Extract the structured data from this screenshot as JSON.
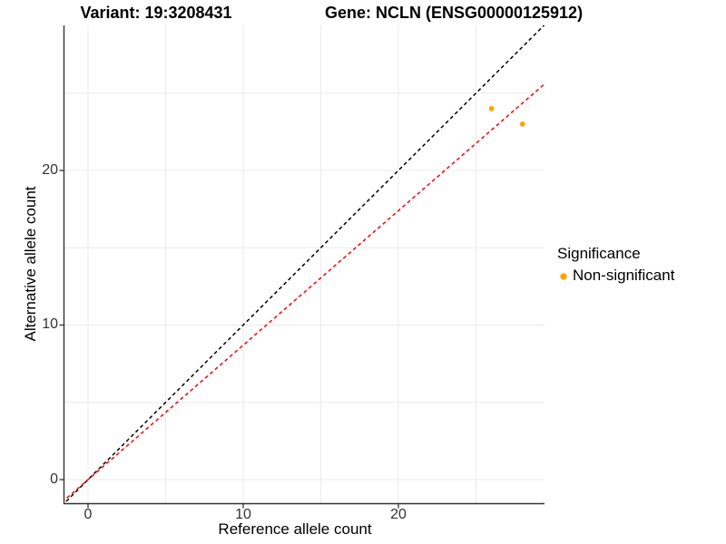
{
  "titles": {
    "left": "Variant: 19:3208431",
    "right": "Gene: NCLN (ENSG00000125912)"
  },
  "axes": {
    "x": {
      "label": "Reference allele count",
      "ticks": [
        "0",
        "10",
        "20"
      ]
    },
    "y": {
      "label": "Alternative allele count",
      "ticks": [
        "0",
        "10",
        "20"
      ]
    }
  },
  "legend": {
    "title": "Significance",
    "items": [
      {
        "label": "Non-significant",
        "color": "#FFA500"
      }
    ]
  },
  "colors": {
    "background": "#FFFFFF",
    "gridline": "#EBEBEB",
    "axis": "#333333",
    "tick_label": "#333333"
  },
  "chart_data": {
    "type": "scatter",
    "title": "Variant: 19:3208431 | Gene: NCLN (ENSG00000125912)",
    "xlabel": "Reference allele count",
    "ylabel": "Alternative allele count",
    "xlim": [
      -1.6,
      29.4
    ],
    "ylim": [
      -1.6,
      29.4
    ],
    "x_ticks": [
      0,
      10,
      20
    ],
    "y_ticks": [
      0,
      10,
      20
    ],
    "grid": "major and minor gridlines every 5 units",
    "legend_position": "right",
    "series": [
      {
        "name": "Non-significant",
        "color": "#FFA500",
        "points": [
          {
            "x": 26,
            "y": 24
          },
          {
            "x": 28,
            "y": 23
          }
        ]
      }
    ],
    "lines": [
      {
        "name": "identity",
        "slope": 1,
        "intercept": 0,
        "color": "#000000",
        "style": "dashed"
      },
      {
        "name": "allelic-balance-fit",
        "slope": 0.87,
        "intercept": 0,
        "color": "#FF0000",
        "style": "dashed"
      }
    ]
  }
}
